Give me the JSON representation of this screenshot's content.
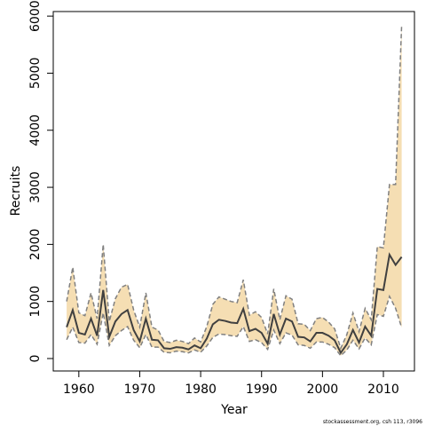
{
  "chart_data": {
    "type": "band-line",
    "xlabel": "Year",
    "ylabel": "Recruits",
    "footnote": "stockassessment.org, csh 113, r3096",
    "x": [
      1958,
      1959,
      1960,
      1961,
      1962,
      1963,
      1964,
      1965,
      1966,
      1967,
      1968,
      1969,
      1970,
      1971,
      1972,
      1973,
      1974,
      1975,
      1976,
      1977,
      1978,
      1979,
      1980,
      1981,
      1982,
      1983,
      1984,
      1985,
      1986,
      1987,
      1988,
      1989,
      1990,
      1991,
      1992,
      1993,
      1994,
      1995,
      1996,
      1997,
      1998,
      1999,
      2000,
      2001,
      2002,
      2003,
      2004,
      2005,
      2006,
      2007,
      2008,
      2009,
      2010,
      2011,
      2012,
      2013
    ],
    "values": [
      550,
      850,
      450,
      420,
      700,
      400,
      1200,
      380,
      650,
      780,
      850,
      500,
      300,
      700,
      330,
      320,
      180,
      170,
      200,
      190,
      160,
      230,
      180,
      350,
      600,
      680,
      660,
      630,
      620,
      870,
      480,
      520,
      450,
      260,
      780,
      420,
      700,
      650,
      380,
      370,
      300,
      450,
      450,
      400,
      320,
      100,
      250,
      500,
      280,
      560,
      400,
      1220,
      1200,
      1820,
      1640,
      1780
    ],
    "upper": [
      1000,
      1600,
      800,
      750,
      1150,
      700,
      2000,
      650,
      1050,
      1250,
      1300,
      850,
      550,
      1150,
      550,
      500,
      300,
      280,
      320,
      300,
      260,
      360,
      290,
      560,
      950,
      1080,
      1040,
      1000,
      980,
      1380,
      760,
      820,
      720,
      430,
      1220,
      680,
      1100,
      1040,
      610,
      600,
      490,
      700,
      720,
      640,
      520,
      180,
      420,
      800,
      470,
      880,
      680,
      1960,
      1940,
      3050,
      3050,
      5850
    ],
    "lower": [
      330,
      550,
      280,
      270,
      420,
      250,
      800,
      230,
      400,
      490,
      560,
      320,
      190,
      420,
      200,
      200,
      110,
      100,
      130,
      120,
      100,
      150,
      110,
      220,
      370,
      430,
      420,
      400,
      390,
      560,
      300,
      330,
      280,
      160,
      500,
      260,
      450,
      410,
      240,
      230,
      180,
      290,
      290,
      250,
      190,
      50,
      150,
      320,
      170,
      360,
      240,
      770,
      740,
      1090,
      880,
      540
    ],
    "line_color": "#404040",
    "band_color": "#f5deb3",
    "bound_color": "#808080",
    "xlim": [
      1955.8,
      2015.1
    ],
    "ylim": [
      -218,
      6080
    ],
    "xticks": [
      1960,
      1970,
      1980,
      1990,
      2000,
      2010
    ],
    "yticks": [
      0,
      1000,
      2000,
      3000,
      4000,
      5000,
      6000
    ]
  }
}
